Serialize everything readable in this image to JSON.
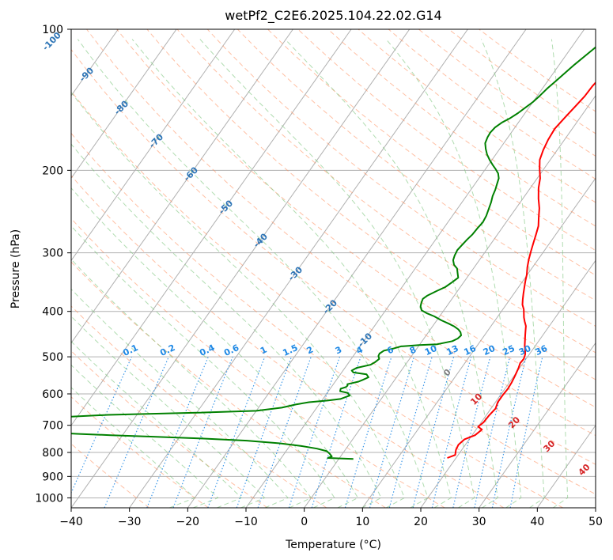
{
  "chart_data": {
    "type": "line",
    "title": "wetPf2_C2E6.2025.104.22.02.G14",
    "xlabel": "Temperature (°C)",
    "ylabel": "Pressure (hPa)",
    "xlim": [
      -40,
      50
    ],
    "ylim": [
      1050,
      100
    ],
    "y_scale": "log",
    "grid": true,
    "x_ticks": [
      -40,
      -30,
      -20,
      -10,
      0,
      10,
      20,
      30,
      40,
      50
    ],
    "y_ticks": [
      100,
      200,
      300,
      400,
      500,
      600,
      700,
      800,
      900,
      1000
    ],
    "isotherm_labels": [
      -100,
      -90,
      -80,
      -70,
      -60,
      -50,
      -40,
      -30,
      -20,
      -10
    ],
    "mixing_ratio_labels": [
      "0.1",
      "0.2",
      "0.4",
      "0.6",
      "1",
      "1.5",
      "2",
      "3",
      "4",
      "6",
      "8",
      "10",
      "13",
      "16",
      "20",
      "25",
      "30",
      "36"
    ],
    "moist_adiabat_labels": [
      "0",
      "10",
      "20",
      "30",
      "40"
    ],
    "colors": {
      "temperature": "#ff0000",
      "dewpoint": "#008000",
      "dry_adiabat": "#ff8c5a",
      "moist_adiabat": "#7bc47b",
      "mixing_ratio": "#1e88e5",
      "isotherm": "#808080",
      "isotherm_label": "#2e75b6",
      "moist_label": "#d62728",
      "grid": "#b0b0b0"
    },
    "series": [
      {
        "points": [
          [
            18.5,
            822
          ],
          [
            19.5,
            810
          ],
          [
            19.0,
            790
          ],
          [
            18.8,
            770
          ],
          [
            19.2,
            750
          ],
          [
            20.5,
            735
          ],
          [
            21.0,
            715
          ],
          [
            20.0,
            705
          ],
          [
            20.4,
            690
          ],
          [
            20.5,
            668
          ],
          [
            20.8,
            645
          ],
          [
            20.4,
            625
          ],
          [
            20.4,
            605
          ],
          [
            20.5,
            585
          ],
          [
            20.4,
            568
          ],
          [
            20.2,
            552
          ],
          [
            20.0,
            540
          ],
          [
            19.8,
            528
          ],
          [
            19.5,
            516
          ],
          [
            19.6,
            505
          ],
          [
            19.3,
            494
          ],
          [
            18.8,
            484
          ],
          [
            18.2,
            474
          ],
          [
            17.6,
            462
          ],
          [
            17.0,
            450
          ],
          [
            16.5,
            440
          ],
          [
            16.0,
            430
          ],
          [
            15.2,
            420
          ],
          [
            14.6,
            412
          ],
          [
            14.1,
            404
          ],
          [
            13.6,
            396
          ],
          [
            12.8,
            387
          ],
          [
            12.2,
            377
          ],
          [
            11.6,
            366
          ],
          [
            11.0,
            355
          ],
          [
            10.4,
            344
          ],
          [
            9.9,
            334
          ],
          [
            9.1,
            322
          ],
          [
            8.4,
            310
          ],
          [
            7.8,
            298
          ],
          [
            7.2,
            286
          ],
          [
            6.6,
            274
          ],
          [
            6.0,
            263
          ],
          [
            5.0,
            252
          ],
          [
            4.0,
            241
          ],
          [
            2.7,
            230
          ],
          [
            1.4,
            218
          ],
          [
            0.5,
            208
          ],
          [
            -0.8,
            198
          ],
          [
            -1.8,
            190
          ],
          [
            -2.4,
            181
          ],
          [
            -2.8,
            172
          ],
          [
            -3.0,
            163
          ],
          [
            -2.6,
            154
          ],
          [
            -2.2,
            146
          ],
          [
            -1.8,
            139
          ],
          [
            -1.7,
            132
          ],
          [
            -1.3,
            125
          ],
          [
            -0.4,
            119
          ],
          [
            0.4,
            114
          ],
          [
            2.0,
            110
          ],
          [
            2.6,
            106
          ],
          [
            3.6,
            102
          ],
          [
            4.7,
            99
          ]
        ]
      },
      {
        "points": [
          [
            2.5,
            826
          ],
          [
            -2.0,
            822
          ],
          [
            -1.5,
            816
          ],
          [
            -2.2,
            805
          ],
          [
            -3.0,
            795
          ],
          [
            -5.0,
            785
          ],
          [
            -8.0,
            775
          ],
          [
            -12.0,
            765
          ],
          [
            -18.0,
            755
          ],
          [
            -26.0,
            747
          ],
          [
            -35.0,
            740
          ],
          [
            -42.0,
            735
          ],
          [
            -48.0,
            730
          ],
          [
            -53.0,
            725
          ],
          [
            -58.0,
            720
          ],
          [
            -64.0,
            715
          ],
          [
            -70.0,
            705
          ],
          [
            -62.0,
            685
          ],
          [
            -55.0,
            675
          ],
          [
            -45.0,
            665
          ],
          [
            -30.0,
            658
          ],
          [
            -20.0,
            652
          ],
          [
            -16.0,
            642
          ],
          [
            -14.0,
            632
          ],
          [
            -12.0,
            625
          ],
          [
            -9.0,
            620
          ],
          [
            -7.0,
            615
          ],
          [
            -5.8,
            605
          ],
          [
            -6.5,
            597
          ],
          [
            -8.0,
            592
          ],
          [
            -8.2,
            585
          ],
          [
            -7.5,
            580
          ],
          [
            -7.4,
            576
          ],
          [
            -7.6,
            572
          ],
          [
            -6.0,
            565
          ],
          [
            -5.5,
            560
          ],
          [
            -4.8,
            553
          ],
          [
            -5.5,
            545
          ],
          [
            -8.0,
            540
          ],
          [
            -8.5,
            535
          ],
          [
            -8.0,
            528
          ],
          [
            -6.0,
            520
          ],
          [
            -5.5,
            513
          ],
          [
            -5.2,
            505
          ],
          [
            -5.7,
            498
          ],
          [
            -5.8,
            492
          ],
          [
            -5.4,
            485
          ],
          [
            -4.0,
            480
          ],
          [
            -3.0,
            475
          ],
          [
            0.0,
            472
          ],
          [
            3.0,
            470
          ],
          [
            5.2,
            463
          ],
          [
            5.8,
            457
          ],
          [
            6.0,
            450
          ],
          [
            5.5,
            443
          ],
          [
            4.8,
            437
          ],
          [
            3.8,
            431
          ],
          [
            2.5,
            425
          ],
          [
            0.8,
            418
          ],
          [
            -0.9,
            410
          ],
          [
            -2.5,
            404
          ],
          [
            -3.8,
            398
          ],
          [
            -4.5,
            390
          ],
          [
            -4.8,
            383
          ],
          [
            -5.0,
            376
          ],
          [
            -4.6,
            370
          ],
          [
            -3.6,
            362
          ],
          [
            -2.6,
            355
          ],
          [
            -2.0,
            347
          ],
          [
            -1.5,
            339
          ],
          [
            -2.1,
            332
          ],
          [
            -2.8,
            324
          ],
          [
            -3.8,
            318
          ],
          [
            -4.5,
            311
          ],
          [
            -4.8,
            304
          ],
          [
            -5.0,
            296
          ],
          [
            -4.8,
            288
          ],
          [
            -4.6,
            281
          ],
          [
            -4.3,
            274
          ],
          [
            -4.2,
            266
          ],
          [
            -4.0,
            258
          ],
          [
            -4.2,
            250
          ],
          [
            -4.6,
            242
          ],
          [
            -5.0,
            234
          ],
          [
            -5.5,
            227
          ],
          [
            -5.8,
            220
          ],
          [
            -6.2,
            214
          ],
          [
            -6.6,
            208
          ],
          [
            -7.3,
            203
          ],
          [
            -8.2,
            199
          ],
          [
            -9.2,
            195
          ],
          [
            -10.4,
            190
          ],
          [
            -11.5,
            185
          ],
          [
            -12.4,
            180
          ],
          [
            -13.2,
            175
          ],
          [
            -13.5,
            170
          ],
          [
            -13.6,
            166
          ],
          [
            -13.4,
            162
          ],
          [
            -12.8,
            158
          ],
          [
            -12.0,
            155
          ],
          [
            -11.2,
            151
          ],
          [
            -10.6,
            147
          ],
          [
            -10.0,
            143
          ],
          [
            -9.6,
            139
          ],
          [
            -9.2,
            134
          ],
          [
            -8.6,
            129
          ],
          [
            -8.0,
            124
          ],
          [
            -7.4,
            119
          ],
          [
            -6.8,
            115
          ],
          [
            -6.0,
            110
          ],
          [
            -5.4,
            106
          ],
          [
            -4.6,
            102
          ],
          [
            -3.6,
            99
          ]
        ]
      }
    ]
  }
}
